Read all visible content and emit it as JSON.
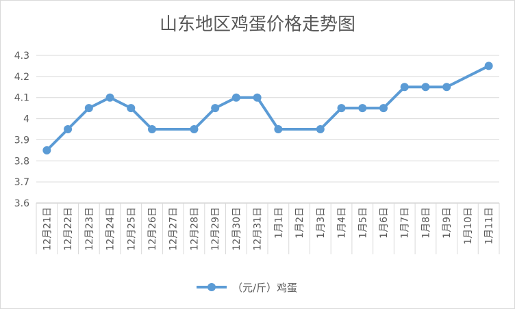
{
  "chart_data": {
    "type": "line",
    "title": "山东地区鸡蛋价格走势图",
    "categories": [
      "12月21日",
      "12月22日",
      "12月23日",
      "12月24日",
      "12月25日",
      "12月26日",
      "12月27日",
      "12月28日",
      "12月29日",
      "12月30日",
      "12月31日",
      "1月1日",
      "1月2日",
      "1月3日",
      "1月4日",
      "1月5日",
      "1月6日",
      "1月7日",
      "1月8日",
      "1月9日",
      "1月10日",
      "1月11日"
    ],
    "series": [
      {
        "name": "（元/斤）鸡蛋",
        "values": [
          3.85,
          3.95,
          4.05,
          4.1,
          4.05,
          3.95,
          null,
          3.95,
          4.05,
          4.1,
          4.1,
          3.95,
          null,
          3.95,
          4.05,
          4.05,
          4.05,
          4.15,
          4.15,
          4.15,
          null,
          4.25
        ],
        "color": "#5B9BD5"
      }
    ],
    "yticks": [
      "3.6",
      "3.7",
      "3.8",
      "3.9",
      "4",
      "4.1",
      "4.2",
      "4.3"
    ],
    "ylim": [
      3.6,
      4.3
    ],
    "grid": true,
    "legend": "bottom"
  }
}
